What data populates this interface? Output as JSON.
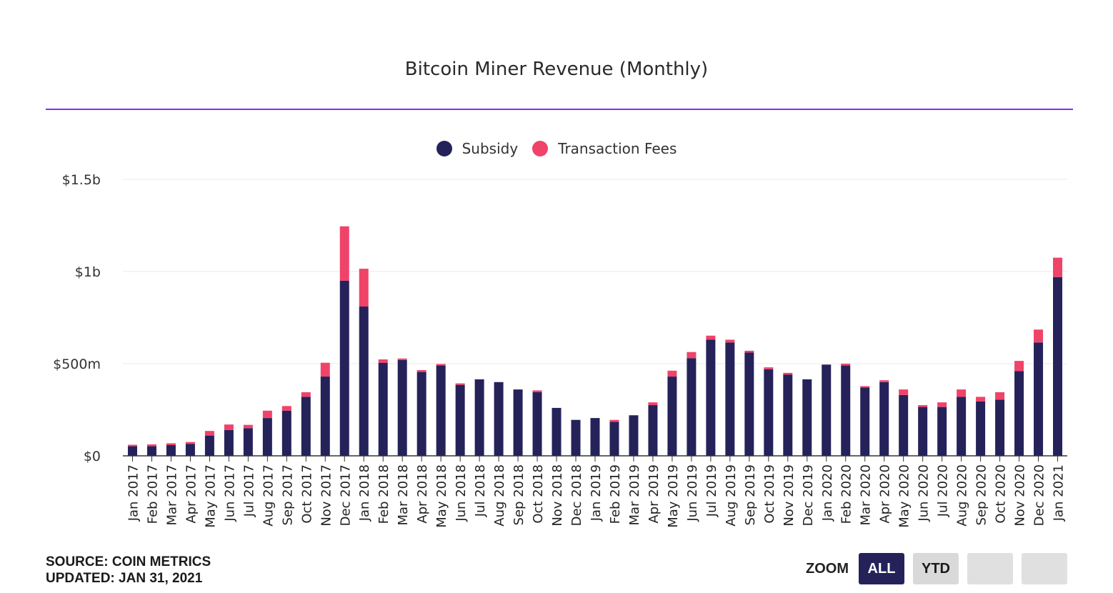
{
  "colors": {
    "subsidy": "#25225a",
    "fees": "#f0436a",
    "rule": "#8e2de2",
    "grid": "#e8e8e8"
  },
  "legend": {
    "subsidy": "Subsidy",
    "fees": "Transaction Fees"
  },
  "footer": {
    "source": "SOURCE: COIN METRICS",
    "updated": "UPDATED: JAN 31, 2021"
  },
  "zoom": {
    "label": "ZOOM",
    "all": "ALL",
    "ytd": "YTD"
  },
  "chart_data": {
    "type": "bar",
    "stacked": true,
    "title": "Bitcoin Miner Revenue (Monthly)",
    "xlabel": "",
    "ylabel": "",
    "ylim": [
      0,
      1500
    ],
    "yunit": "millions USD",
    "yticks": [
      {
        "value": 0,
        "label": "$0"
      },
      {
        "value": 500,
        "label": "$500m"
      },
      {
        "value": 1000,
        "label": "$1b"
      },
      {
        "value": 1500,
        "label": "$1.5b"
      }
    ],
    "categories": [
      "Jan 2017",
      "Feb 2017",
      "Mar 2017",
      "Apr 2017",
      "May 2017",
      "Jun 2017",
      "Jul 2017",
      "Aug 2017",
      "Sep 2017",
      "Oct 2017",
      "Nov 2017",
      "Dec 2017",
      "Jan 2018",
      "Feb 2018",
      "Mar 2018",
      "Apr 2018",
      "May 2018",
      "Jun 2018",
      "Jul 2018",
      "Aug 2018",
      "Sep 2018",
      "Oct 2018",
      "Nov 2018",
      "Dec 2018",
      "Jan 2019",
      "Feb 2019",
      "Mar 2019",
      "Apr 2019",
      "May 2019",
      "Jun 2019",
      "Jul 2019",
      "Aug 2019",
      "Sep 2019",
      "Oct 2019",
      "Nov 2019",
      "Dec 2019",
      "Jan 2020",
      "Feb 2020",
      "Mar 2020",
      "Apr 2020",
      "May 2020",
      "Jun 2020",
      "Jul 2020",
      "Aug 2020",
      "Sep 2020",
      "Oct 2020",
      "Nov 2020",
      "Dec 2020",
      "Jan 2021"
    ],
    "series": [
      {
        "name": "Subsidy",
        "values": [
          52,
          52,
          58,
          65,
          110,
          140,
          150,
          205,
          245,
          320,
          430,
          950,
          810,
          505,
          520,
          455,
          490,
          385,
          415,
          400,
          360,
          345,
          260,
          195,
          205,
          185,
          220,
          275,
          430,
          530,
          630,
          615,
          560,
          470,
          440,
          415,
          495,
          490,
          370,
          400,
          330,
          265,
          265,
          320,
          295,
          305,
          460,
          615,
          970
        ]
      },
      {
        "name": "Transaction Fees",
        "values": [
          8,
          10,
          10,
          10,
          25,
          30,
          18,
          40,
          25,
          25,
          75,
          295,
          205,
          18,
          8,
          10,
          8,
          8,
          0,
          0,
          0,
          10,
          0,
          0,
          0,
          10,
          0,
          15,
          32,
          33,
          22,
          15,
          10,
          10,
          10,
          0,
          0,
          10,
          8,
          10,
          30,
          10,
          25,
          40,
          25,
          40,
          55,
          70,
          105
        ]
      }
    ]
  }
}
